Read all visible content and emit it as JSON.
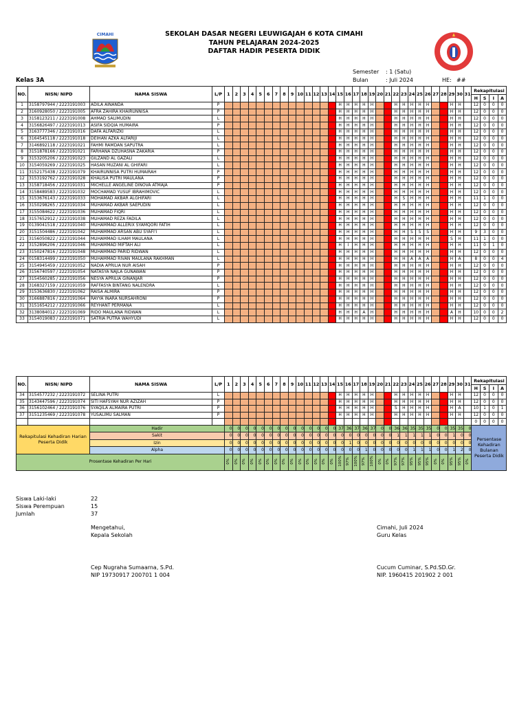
{
  "header": {
    "title1": "SEKOLAH DASAR NEGERI LEUWIGAJAH 6 KOTA CIMAHI",
    "title2": "TAHUN PELAJARAN 2024-2025",
    "title3": "DAFTAR HADIR PESERTA DIDIK",
    "logo_left_text": "CIMAHI",
    "logo_right_text": "SDN LEUWIGAJAH 6 CIMAHI"
  },
  "info": {
    "class": "Kelas 3A",
    "semester_label": "Semester",
    "semester_value": ": 1 (Satu)",
    "month_label": "Bulan",
    "month_value": ": Juli 2024",
    "he_label": "HE:",
    "he_value": "##"
  },
  "columns": {
    "no": "NO.",
    "nisn": "NISN/ NIPD",
    "name": "NAMA SISWA",
    "lp": "L/P",
    "rekap": "Rekapitulasi",
    "h": "H",
    "s": "S",
    "i": "I",
    "a": "A"
  },
  "days": [
    1,
    2,
    3,
    4,
    5,
    6,
    7,
    8,
    9,
    10,
    11,
    12,
    13,
    14,
    15,
    16,
    17,
    18,
    19,
    20,
    21,
    22,
    23,
    24,
    25,
    26,
    27,
    28,
    29,
    30,
    31
  ],
  "calendar": {
    "school_days": [
      15,
      16,
      17,
      18,
      19,
      22,
      23,
      24,
      25,
      26,
      29,
      30
    ],
    "off_days": [
      1,
      2,
      3,
      4,
      5,
      6,
      7,
      8,
      9,
      10,
      11,
      12,
      13,
      20,
      27
    ],
    "sunday_days": [
      14,
      21,
      28
    ]
  },
  "colors": {
    "off_day": "#f4b183",
    "sunday": "#ff0000",
    "hadir": "#a9d18e",
    "sakit": "#f8cbad",
    "izin": "#ffe699",
    "alpha": "#bdd7ee",
    "label_box": "#ffd966",
    "monthly_box": "#8faadc"
  },
  "students": [
    {
      "no": "1",
      "nisn": "3158797944 / 2223191003",
      "name": "ADILA AINANDA",
      "lp": "P",
      "att": "HHHHHHHHHHHH",
      "h": "12",
      "s": "0",
      "i": "0",
      "a": "0"
    },
    {
      "no": "2",
      "nisn": "3160928050 / 2223191005",
      "name": "AFRA ZAHIRA KHAIRUNNISA",
      "lp": "P",
      "att": "HHHHHHHHHHHH",
      "h": "12",
      "s": "0",
      "i": "0",
      "a": "0"
    },
    {
      "no": "3",
      "nisn": "3158123211 / 2223191008",
      "name": "AHMAD SALIMUDIN",
      "lp": "L",
      "att": "HHHHHHHHHHHH",
      "h": "12",
      "s": "0",
      "i": "0",
      "a": "0"
    },
    {
      "no": "4",
      "nisn": "3156826497 / 2223191013",
      "name": "ASIFA SIDQIA HUMAIRA",
      "lp": "P",
      "att": "HHHHHHHHHHHH",
      "h": "12",
      "s": "0",
      "i": "0",
      "a": "0"
    },
    {
      "no": "5",
      "nisn": "3163777346 / 2223191016",
      "name": "DAFA ALFARIZKI",
      "lp": "L",
      "att": "HHHHHHHHHHHH",
      "h": "12",
      "s": "0",
      "i": "0",
      "a": "0"
    },
    {
      "no": "6",
      "nisn": "3164545118 / 2223191018",
      "name": "DEIHAN AZKA ALFARIJI",
      "lp": "L",
      "att": "HHHHHHHHHHHH",
      "h": "12",
      "s": "0",
      "i": "0",
      "a": "0"
    },
    {
      "no": "7",
      "nisn": "3146892118 / 2223191021",
      "name": "FAHMI RAMDAN SAPUTRA",
      "lp": "L",
      "att": "HHHHHHHHHHHH",
      "h": "12",
      "s": "0",
      "i": "0",
      "a": "0"
    },
    {
      "no": "8",
      "nisn": "3151878166 / 2223191021",
      "name": "FARHANA DZUHASNA ZAKARIA",
      "lp": "P",
      "att": "HHHHHHHHHHHH",
      "h": "12",
      "s": "0",
      "i": "0",
      "a": "0"
    },
    {
      "no": "9",
      "nisn": "3153205206 / 2223191023",
      "name": "GILZAND AL GAZALI",
      "lp": "L",
      "att": "HHHHHHHHHHHH",
      "h": "12",
      "s": "0",
      "i": "0",
      "a": "0"
    },
    {
      "no": "10",
      "nisn": "3154059269 / 2223191025",
      "name": "HASAN MUZANI AL GHIFARI",
      "lp": "L",
      "att": "HHHHHHHHHHHH",
      "h": "12",
      "s": "0",
      "i": "0",
      "a": "0"
    },
    {
      "no": "11",
      "nisn": "3152175438 / 2223191079",
      "name": "KHAIRUNNISA PUTRI HUMAIRAH",
      "lp": "P",
      "att": "HHHHHHHHHHHH",
      "h": "12",
      "s": "0",
      "i": "0",
      "a": "0"
    },
    {
      "no": "12",
      "nisn": "3153192762 / 2223191028",
      "name": "KHALISA PUTRI MAULANA",
      "lp": "P",
      "att": "HHHHHHHHHHHH",
      "h": "12",
      "s": "0",
      "i": "0",
      "a": "0"
    },
    {
      "no": "13",
      "nisn": "3158718456 / 2223191031",
      "name": "MICHELLE ANGELINE DINOVA ATMAJA",
      "lp": "P",
      "att": "HHHHHHHHHHHH",
      "h": "12",
      "s": "0",
      "i": "0",
      "a": "0"
    },
    {
      "no": "14",
      "nisn": "3158489583 / 2223191032",
      "name": "MOCHAMAD YUSUF IBRAHIMOVIC",
      "lp": "L",
      "att": "HHHHHHHHHHHH",
      "h": "12",
      "s": "0",
      "i": "0",
      "a": "0"
    },
    {
      "no": "15",
      "nisn": "3153676143 / 2223191033",
      "name": "MOHAMAD AKBAR ALGHIFARI",
      "lp": "L",
      "att": "HHHHHHSHHHHH",
      "h": "11",
      "s": "1",
      "i": "0",
      "a": "0"
    },
    {
      "no": "16",
      "nisn": "3150298265 / 2223191034",
      "name": "MUHAMAD AKBAR SAEPUDIN",
      "lp": "L",
      "att": "HHHHHHHHHHHH",
      "h": "12",
      "s": "0",
      "i": "0",
      "a": "0"
    },
    {
      "no": "17",
      "nisn": "3155084622 / 2223191036",
      "name": "MUHAMAD FIQRI",
      "lp": "L",
      "att": "HHHHHHHHHHHH",
      "h": "12",
      "s": "0",
      "i": "0",
      "a": "0"
    },
    {
      "no": "18",
      "nisn": "3157652912 / 2223191038",
      "name": "MUHAMAD REZA FADILA",
      "lp": "L",
      "att": "HHHHHHHHHHHH",
      "h": "12",
      "s": "0",
      "i": "0",
      "a": "0"
    },
    {
      "no": "19",
      "nisn": "0139041518 / 2223191040",
      "name": "MUHAMMAD ALLERIX SYAMQORI FATIH",
      "lp": "L",
      "att": "HHHHHHHHHHHH",
      "h": "12",
      "s": "0",
      "i": "0",
      "a": "0"
    },
    {
      "no": "20",
      "nisn": "3151504486 / 2223191042",
      "name": "MUHAMMAD ARSAN ABU SYAFI'I",
      "lp": "L",
      "att": "HHHHHHHSSSHH",
      "h": "9",
      "s": "3",
      "i": "0",
      "a": "0"
    },
    {
      "no": "21",
      "nisn": "3156050822 / 2223191044",
      "name": "MUHAMMAD ILHAM MAULANA",
      "lp": "L",
      "att": "HHHHHHHHHHSH",
      "h": "11",
      "s": "1",
      "i": "0",
      "a": "0"
    },
    {
      "no": "22",
      "nisn": "3152896206 / 2223191046",
      "name": "MUHAMMAD MIFTAH ALI",
      "lp": "L",
      "att": "HIHHHHHHHHHH",
      "h": "11",
      "s": "0",
      "i": "1",
      "a": "0"
    },
    {
      "no": "23",
      "nisn": "3150247816 / 2223191048",
      "name": "MUHAMMAD PARID RIDWAN",
      "lp": "L",
      "att": "HHHHHHHHHHHH",
      "h": "12",
      "s": "0",
      "i": "0",
      "a": "0"
    },
    {
      "no": "24",
      "nisn": "0158314499 / 2223191050",
      "name": "MUHAMMAD RIVAN MAULANA RAKHMAN",
      "lp": "L",
      "att": "HHHHHHHAAAHA",
      "h": "8",
      "s": "0",
      "i": "0",
      "a": "4"
    },
    {
      "no": "25",
      "nisn": "3154945459 / 2223191052",
      "name": "NADIA APRILIA NUR AISAH",
      "lp": "P",
      "att": "HHHHHHHHHHHH",
      "h": "12",
      "s": "0",
      "i": "0",
      "a": "0"
    },
    {
      "no": "26",
      "nisn": "3156740597 / 2223191054",
      "name": "NATASYA NAJLA GUNAWAN",
      "lp": "P",
      "att": "HHHHHHHHHHHH",
      "h": "12",
      "s": "0",
      "i": "0",
      "a": "0"
    },
    {
      "no": "27",
      "nisn": "3154560285 / 2223191056",
      "name": "NESYA APRILIA GINANJAR",
      "lp": "P",
      "att": "HHHHHHHHHHHH",
      "h": "12",
      "s": "0",
      "i": "0",
      "a": "0"
    },
    {
      "no": "28",
      "nisn": "3168327159 / 2223191059",
      "name": "RAFFASYA BINTANG NALENDRA",
      "lp": "L",
      "att": "HHHHHHHHHHHH",
      "h": "12",
      "s": "0",
      "i": "0",
      "a": "0"
    },
    {
      "no": "29",
      "nisn": "3153636830 / 2223191062",
      "name": "RAISA ALMIRA",
      "lp": "P",
      "att": "HHHHHHHHHHHH",
      "h": "12",
      "s": "0",
      "i": "0",
      "a": "0"
    },
    {
      "no": "30",
      "nisn": "3166887816 / 2223191064",
      "name": "RAYYA INARA NURSAHRONI",
      "lp": "P",
      "att": "HHHHHHHHHHHH",
      "h": "12",
      "s": "0",
      "i": "0",
      "a": "0"
    },
    {
      "no": "31",
      "nisn": "3151654212 / 2223191066",
      "name": "REYHANT PERMANA",
      "lp": "L",
      "att": "HHHHHHHHHHHH",
      "h": "12",
      "s": "0",
      "i": "0",
      "a": "0"
    },
    {
      "no": "32",
      "nisn": "3138084012 / 2223191069",
      "name": "RIDO MAULANA RIDWAN",
      "lp": "L",
      "att": "HHHAHHHHHHAH",
      "h": "10",
      "s": "0",
      "i": "0",
      "a": "2"
    },
    {
      "no": "33",
      "nisn": "3154019083 / 2223191071",
      "name": "SATRIA PUTRA WAHYUDI",
      "lp": "L",
      "att": "HHHHHHHHHHHH",
      "h": "12",
      "s": "0",
      "i": "0",
      "a": "0"
    },
    {
      "no": "34",
      "nisn": "3154577232 / 2223191072",
      "name": "SELINA PUTRI",
      "lp": "L",
      "att": "HHHHHHHHHHHH",
      "h": "12",
      "s": "0",
      "i": "0",
      "a": "0"
    },
    {
      "no": "35",
      "nisn": "3143447596 / 2223191074",
      "name": "SITI HAFSYAH NUR AZIZAH",
      "lp": "P",
      "att": "HHHHHHHHHHHH",
      "h": "12",
      "s": "0",
      "i": "0",
      "a": "0"
    },
    {
      "no": "36",
      "nisn": "3156102464 / 2223191076",
      "name": "SYAQILA ALMAIRA PUTRI",
      "lp": "P",
      "att": "HHHHHSHHHHHA",
      "h": "10",
      "s": "1",
      "i": "0",
      "a": "1"
    },
    {
      "no": "37",
      "nisn": "3151235469 / 2223191078",
      "name": "YUSALIMU SALMAN",
      "lp": "P",
      "att": "HHHHHHHHHHHH",
      "h": "12",
      "s": "0",
      "i": "0",
      "a": "0"
    },
    {
      "no": "",
      "nisn": "",
      "name": "",
      "lp": "",
      "att": "",
      "h": "0",
      "s": "0",
      "i": "0",
      "a": "0"
    }
  ],
  "summary": {
    "label": "Rekapitulasi Kehadiran Harian Peserta Didik",
    "rows": [
      {
        "label": "Hadir",
        "key": "h",
        "values": [
          "0",
          "0",
          "0",
          "0",
          "0",
          "0",
          "0",
          "0",
          "0",
          "0",
          "0",
          "0",
          "0",
          "0",
          "37",
          "36",
          "37",
          "36",
          "37",
          "0",
          "0",
          "36",
          "36",
          "35",
          "35",
          "35",
          "0",
          "0",
          "35",
          "35",
          "0"
        ]
      },
      {
        "label": "Sakit",
        "key": "s",
        "values": [
          "0",
          "0",
          "0",
          "0",
          "0",
          "0",
          "0",
          "0",
          "0",
          "0",
          "0",
          "0",
          "0",
          "0",
          "0",
          "0",
          "0",
          "0",
          "0",
          "0",
          "0",
          "1",
          "1",
          "1",
          "1",
          "1",
          "0",
          "0",
          "1",
          "0",
          "0"
        ]
      },
      {
        "label": "Izin",
        "key": "i",
        "values": [
          "0",
          "0",
          "0",
          "0",
          "0",
          "0",
          "0",
          "0",
          "0",
          "0",
          "0",
          "0",
          "0",
          "0",
          "0",
          "1",
          "0",
          "0",
          "0",
          "0",
          "0",
          "0",
          "0",
          "0",
          "0",
          "0",
          "0",
          "0",
          "0",
          "0",
          "0"
        ]
      },
      {
        "label": "Alpha",
        "key": "a",
        "values": [
          "0",
          "0",
          "0",
          "0",
          "0",
          "0",
          "0",
          "0",
          "0",
          "0",
          "0",
          "0",
          "0",
          "0",
          "0",
          "0",
          "0",
          "1",
          "0",
          "0",
          "0",
          "0",
          "0",
          "1",
          "1",
          "1",
          "0",
          "0",
          "1",
          "2",
          "0"
        ]
      }
    ],
    "percent_label": "Prosentase Kehadiran Per Hari",
    "percents": [
      "0%",
      "0%",
      "0%",
      "0%",
      "0%",
      "0%",
      "0%",
      "0%",
      "0%",
      "0%",
      "0%",
      "0%",
      "0%",
      "0%",
      "100%",
      "97%",
      "100%",
      "97%",
      "100%",
      "0%",
      "0%",
      "97%",
      "97%",
      "95%",
      "95%",
      "95%",
      "0%",
      "0%",
      "95%",
      "95%",
      "0%"
    ],
    "monthly_label": "Persentase Kehadiran Bulanan Peserta Didik"
  },
  "totals": {
    "male_label": "Siswa Laki-laki",
    "male": "22",
    "female_label": "Siswa Perempuan",
    "female": "15",
    "total_label": "Jumlah",
    "total": "37"
  },
  "signatures": {
    "left_line1": "Mengetahui,",
    "left_line2": "Kepala Sekolah",
    "left_name": "Cep Nugraha Sumaarna, S.Pd.",
    "left_nip": "NIP 19730917 200701 1 004",
    "right_line1": "Cimahi, Juli 2024",
    "right_line2": "Guru Kelas",
    "right_name": "Cucum Cuminar, S.Pd.SD.Gr.",
    "right_nip": "NIP. 1960415 201902 2 001"
  }
}
